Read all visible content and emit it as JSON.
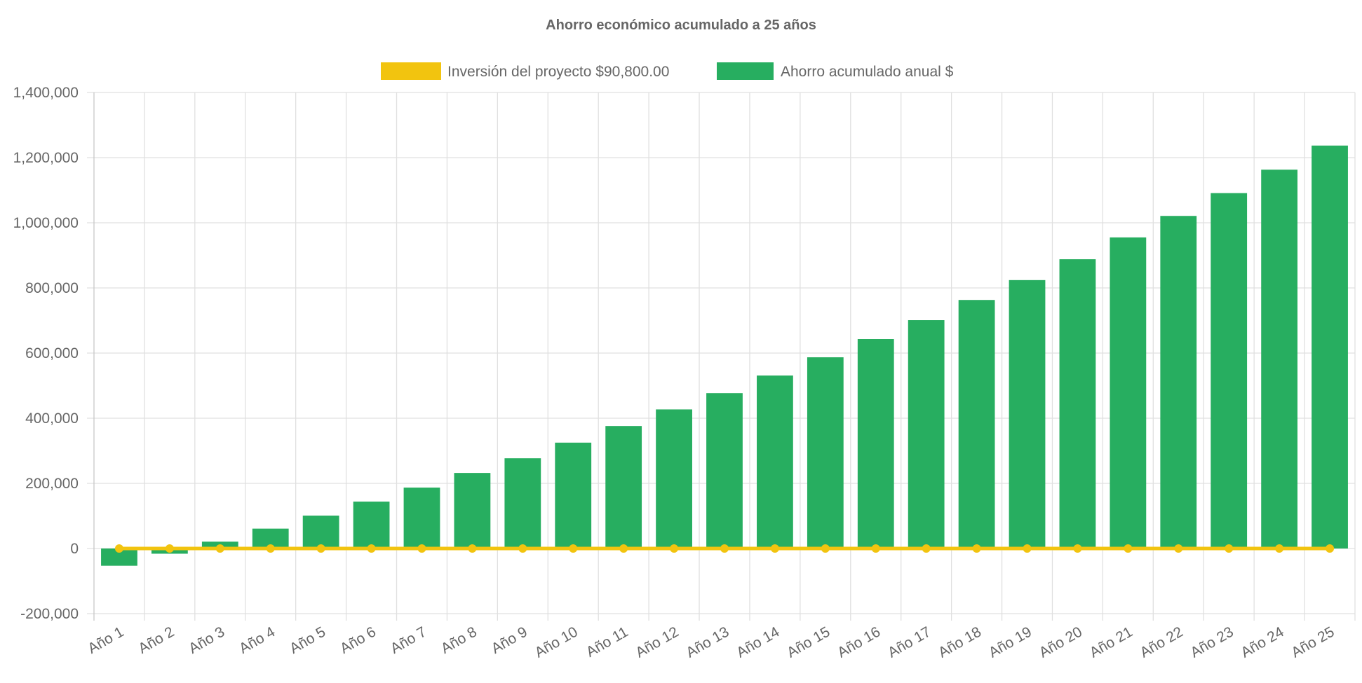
{
  "chart_data": {
    "type": "bar",
    "title": "Ahorro económico acumulado a 25 años",
    "categories": [
      "Año 1",
      "Año 2",
      "Año 3",
      "Año 4",
      "Año 5",
      "Año 6",
      "Año 7",
      "Año 8",
      "Año 9",
      "Año 10",
      "Año 11",
      "Año 12",
      "Año 13",
      "Año 14",
      "Año 15",
      "Año 16",
      "Año 17",
      "Año 18",
      "Año 19",
      "Año 20",
      "Año 21",
      "Año 22",
      "Año 23",
      "Año 24",
      "Año 25"
    ],
    "series": [
      {
        "name": "Inversión del proyecto $90,800.00",
        "type": "line",
        "color": "#f2c40f",
        "values": [
          0,
          0,
          0,
          0,
          0,
          0,
          0,
          0,
          0,
          0,
          0,
          0,
          0,
          0,
          0,
          0,
          0,
          0,
          0,
          0,
          0,
          0,
          0,
          0,
          0
        ]
      },
      {
        "name": "Ahorro acumulado anual $",
        "type": "bar",
        "color": "#27ae60",
        "values": [
          -53000,
          -16000,
          21000,
          61000,
          101000,
          144000,
          187000,
          232000,
          277000,
          325000,
          376000,
          427000,
          477000,
          531000,
          587000,
          643000,
          701000,
          763000,
          824000,
          888000,
          955000,
          1021000,
          1091000,
          1163000,
          1237000
        ]
      }
    ],
    "ylim": [
      -200000,
      1400000
    ],
    "yticks": [
      "-200,000",
      "0",
      "200,000",
      "400,000",
      "600,000",
      "800,000",
      "1,000,000",
      "1,200,000",
      "1,400,000"
    ],
    "grid": true,
    "legend": "top"
  }
}
